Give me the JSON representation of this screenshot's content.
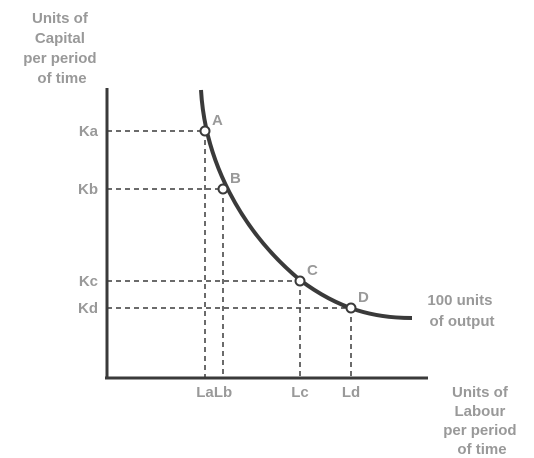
{
  "chart_data": {
    "type": "line",
    "ylabel_lines": [
      "Units of",
      "Capital",
      "per period",
      "of time"
    ],
    "xlabel_lines": [
      "Units of",
      "Labour",
      "per period",
      "of time"
    ],
    "curve_label_lines": [
      "100 units",
      "of output"
    ],
    "y_ticks": [
      "Ka",
      "Kb",
      "Kc",
      "Kd"
    ],
    "x_ticks": [
      "La",
      "Lb",
      "Lc",
      "Ld"
    ],
    "points": [
      {
        "name": "A",
        "x": "La",
        "y": "Ka"
      },
      {
        "name": "B",
        "x": "Lb",
        "y": "Kb"
      },
      {
        "name": "C",
        "x": "Lc",
        "y": "Kc"
      },
      {
        "name": "D",
        "x": "Ld",
        "y": "Kd"
      }
    ],
    "grid": false,
    "curve_color": "#3a3a3a",
    "label_color": "#999999"
  }
}
